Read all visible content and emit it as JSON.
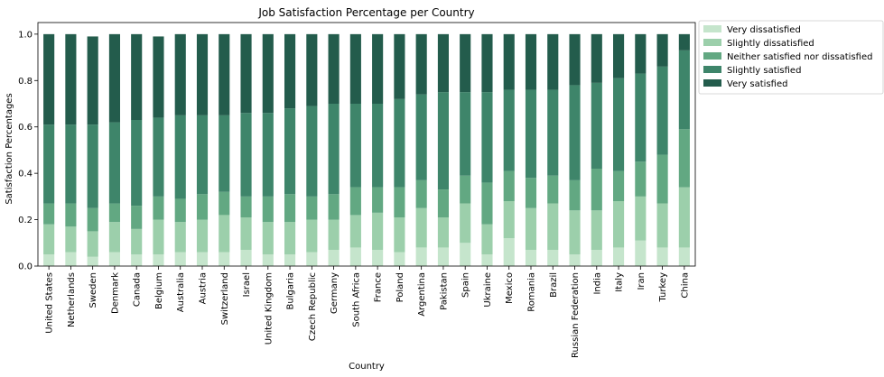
{
  "chart_data": {
    "type": "bar",
    "stacked": true,
    "title": "Job Satisfaction Percentage per Country",
    "xlabel": "Country",
    "ylabel": "Satisfaction Percentages",
    "ylim": [
      0,
      1.05
    ],
    "yticks": [
      "0.0",
      "0.2",
      "0.4",
      "0.6",
      "0.8",
      "1.0"
    ],
    "legend_position": "outside-top-right",
    "categories": [
      "United States",
      "Netherlands",
      "Sweden",
      "Denmark",
      "Canada",
      "Belgium",
      "Australia",
      "Austria",
      "Switzerland",
      "Israel",
      "United Kingdom",
      "Bulgaria",
      "Czech Republic",
      "Germany",
      "South Africa",
      "France",
      "Poland",
      "Argentina",
      "Pakistan",
      "Spain",
      "Ukraine",
      "Mexico",
      "Romania",
      "Brazil",
      "Russian Federation",
      "India",
      "Italy",
      "Iran",
      "Turkey",
      "China"
    ],
    "series": [
      {
        "name": "Very dissatisfied",
        "color": "#c5e5cc",
        "values": [
          0.05,
          0.06,
          0.04,
          0.06,
          0.05,
          0.05,
          0.06,
          0.06,
          0.06,
          0.07,
          0.05,
          0.05,
          0.06,
          0.07,
          0.08,
          0.07,
          0.06,
          0.08,
          0.08,
          0.1,
          0.05,
          0.12,
          0.07,
          0.07,
          0.05,
          0.07,
          0.08,
          0.11,
          0.08,
          0.08
        ]
      },
      {
        "name": "Slightly dissatisfied",
        "color": "#9ccfab",
        "values": [
          0.13,
          0.11,
          0.11,
          0.13,
          0.11,
          0.15,
          0.13,
          0.14,
          0.16,
          0.14,
          0.14,
          0.14,
          0.14,
          0.13,
          0.14,
          0.16,
          0.15,
          0.17,
          0.13,
          0.17,
          0.13,
          0.16,
          0.18,
          0.2,
          0.19,
          0.17,
          0.2,
          0.19,
          0.19,
          0.26
        ]
      },
      {
        "name": "Neither satisfied nor dissatisfied",
        "color": "#62a882",
        "values": [
          0.09,
          0.1,
          0.1,
          0.08,
          0.1,
          0.1,
          0.1,
          0.11,
          0.1,
          0.09,
          0.11,
          0.12,
          0.1,
          0.11,
          0.12,
          0.11,
          0.13,
          0.12,
          0.12,
          0.12,
          0.18,
          0.13,
          0.13,
          0.12,
          0.13,
          0.18,
          0.13,
          0.15,
          0.21,
          0.25
        ]
      },
      {
        "name": "Slightly satisfied",
        "color": "#3e856a",
        "values": [
          0.34,
          0.34,
          0.36,
          0.35,
          0.37,
          0.34,
          0.36,
          0.34,
          0.33,
          0.36,
          0.36,
          0.37,
          0.39,
          0.39,
          0.36,
          0.36,
          0.38,
          0.37,
          0.42,
          0.36,
          0.39,
          0.35,
          0.38,
          0.37,
          0.41,
          0.37,
          0.4,
          0.38,
          0.38,
          0.34
        ]
      },
      {
        "name": "Very satisfied",
        "color": "#235c4c",
        "values": [
          0.39,
          0.39,
          0.38,
          0.38,
          0.37,
          0.35,
          0.35,
          0.35,
          0.35,
          0.34,
          0.34,
          0.32,
          0.31,
          0.3,
          0.3,
          0.3,
          0.28,
          0.26,
          0.25,
          0.25,
          0.25,
          0.24,
          0.24,
          0.24,
          0.22,
          0.21,
          0.19,
          0.17,
          0.14,
          0.07
        ]
      }
    ]
  }
}
